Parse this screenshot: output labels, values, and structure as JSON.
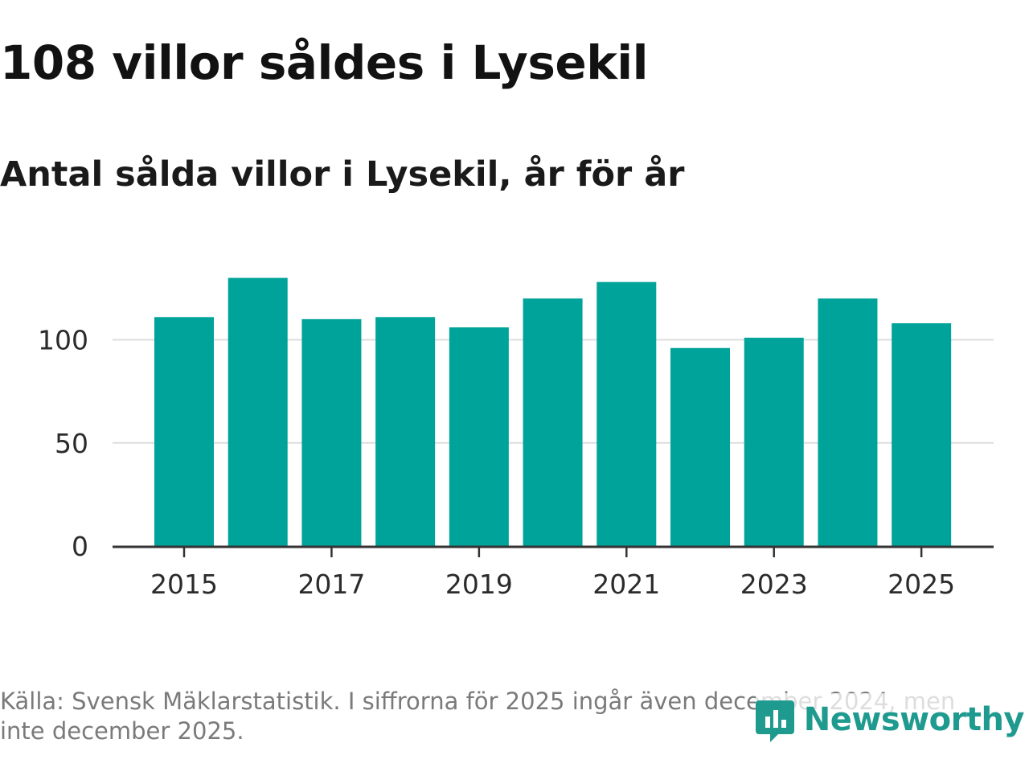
{
  "title": "108 villor såldes i Lysekil",
  "subtitle": "Antal sålda villor i Lysekil, år för år",
  "source": "Källa: Svensk Mäklarstatistik. I siffrorna för 2025 ingår även december 2024, men inte december 2025.",
  "logo": {
    "text": "Newsworthy",
    "icon": "newsworthy-logo-icon"
  },
  "colors": {
    "bar": "#00a39a",
    "grid": "#dddddd",
    "axis": "#333333",
    "logo": "#1f9a8f"
  },
  "chart_data": {
    "type": "bar",
    "title": "Antal sålda villor i Lysekil, år för år",
    "categories": [
      "2015",
      "2016",
      "2017",
      "2018",
      "2019",
      "2020",
      "2021",
      "2022",
      "2023",
      "2024",
      "2025"
    ],
    "values": [
      111,
      130,
      110,
      111,
      106,
      120,
      128,
      96,
      101,
      120,
      108
    ],
    "x_tick_labels": [
      "2015",
      "2017",
      "2019",
      "2021",
      "2023",
      "2025"
    ],
    "y_ticks": [
      0,
      50,
      100
    ],
    "ylim": [
      0,
      140
    ],
    "grid": true,
    "xlabel": "",
    "ylabel": ""
  }
}
